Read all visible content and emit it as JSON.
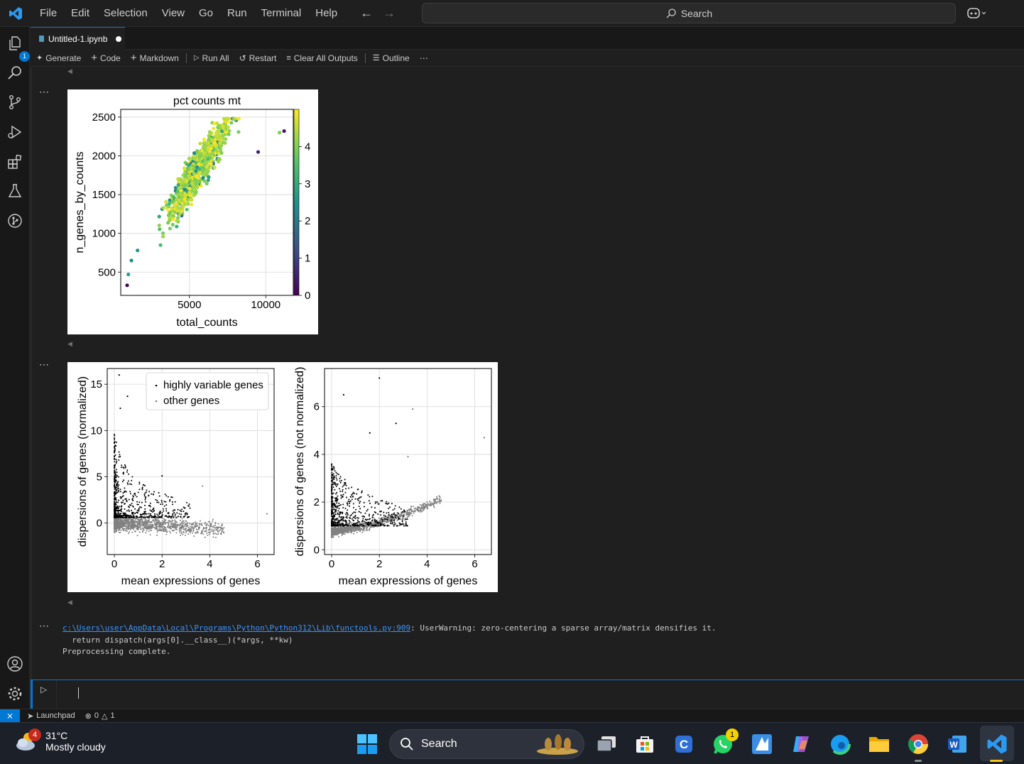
{
  "menu": [
    "File",
    "Edit",
    "Selection",
    "View",
    "Go",
    "Run",
    "Terminal",
    "Help"
  ],
  "command_search": {
    "label": "Search"
  },
  "activity": {
    "explorer_badge": "1"
  },
  "tab": {
    "title": "Untitled-1.ipynb"
  },
  "toolbar": {
    "generate": "Generate",
    "code": "Code",
    "markdown": "Markdown",
    "run_all": "Run All",
    "restart": "Restart",
    "clear_all": "Clear All Outputs",
    "outline": "Outline"
  },
  "chart_data": [
    {
      "type": "scatter",
      "title": "pct counts mt",
      "xlabel": "total_counts",
      "ylabel": "n_genes_by_counts",
      "xticks": [
        "5000",
        "10000"
      ],
      "yticks": [
        "500",
        "1000",
        "1500",
        "2000",
        "2500"
      ],
      "xlim": [
        500,
        11800
      ],
      "ylim": [
        200,
        2600
      ],
      "colorbar": {
        "ticks": [
          "0",
          "1",
          "2",
          "3",
          "4"
        ],
        "range": [
          0,
          5
        ],
        "colormap": "viridis"
      },
      "grid": true
    },
    {
      "type": "scatter",
      "xlabel": "mean expressions of genes",
      "ylabel": "dispersions of genes (normalized)",
      "xticks": [
        "0",
        "2",
        "4",
        "6"
      ],
      "yticks": [
        "0",
        "5",
        "10",
        "15"
      ],
      "xlim": [
        -0.3,
        6.7
      ],
      "ylim": [
        -3.4,
        16.7
      ],
      "legend": {
        "position": "top-right",
        "entries": [
          "highly variable genes",
          "other genes"
        ]
      },
      "series_colors": {
        "highly variable genes": "#000000",
        "other genes": "#808080"
      },
      "grid": true
    },
    {
      "type": "scatter",
      "xlabel": "mean expressions of genes",
      "ylabel": "dispersions of genes (not normalized)",
      "xticks": [
        "0",
        "2",
        "4",
        "6"
      ],
      "yticks": [
        "0",
        "2",
        "4",
        "6"
      ],
      "xlim": [
        -0.3,
        6.7
      ],
      "ylim": [
        -0.2,
        7.6
      ],
      "grid": true
    }
  ],
  "console": {
    "path": "c:\\Users\\user\\AppData\\Local\\Programs\\Python\\Python312\\Lib\\functools.py:909",
    "warning": ": UserWarning: zero-centering a sparse array/matrix densifies it.",
    "line2": "  return dispatch(args[0].__class__)(*args, **kw)",
    "line3": "Preprocessing complete."
  },
  "statusbar": {
    "launchpad": "Launchpad",
    "errors": "0",
    "warnings": "1"
  },
  "taskbar": {
    "weather_temp": "31°C",
    "weather_desc": "Mostly cloudy",
    "weather_badge": "4",
    "search": "Search",
    "whatsapp_badge": "1"
  }
}
